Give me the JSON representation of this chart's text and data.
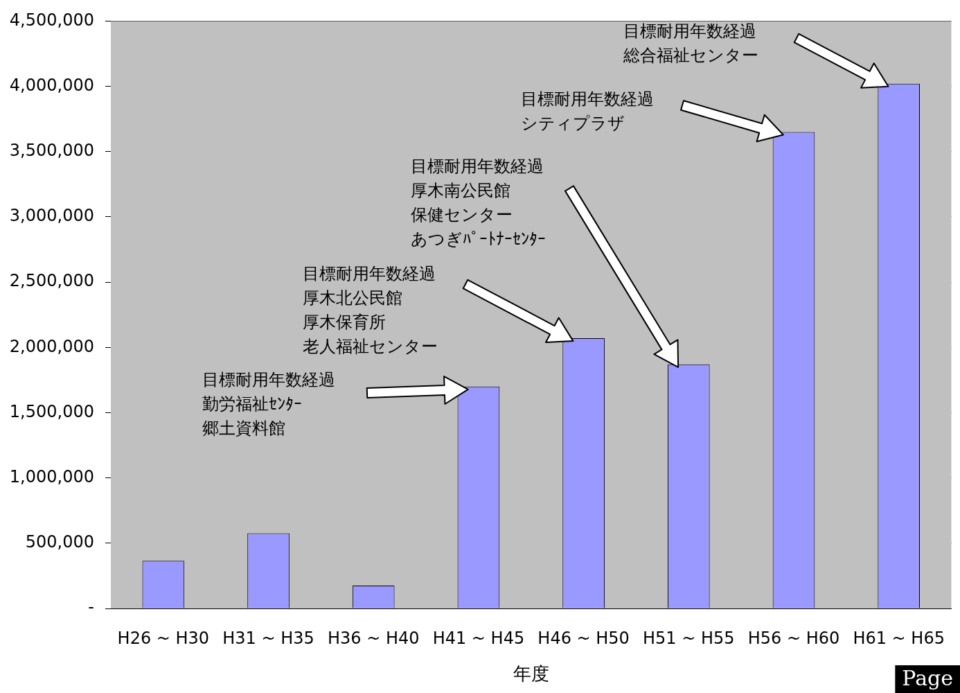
{
  "chart_data": {
    "type": "bar",
    "xlabel": "年度",
    "categories": [
      "H26 ~ H30",
      "H31 ~ H35",
      "H36 ~ H40",
      "H41 ~ H45",
      "H46 ~ H50",
      "H51 ~ H55",
      "H56 ~ H60",
      "H61 ~ H65"
    ],
    "values": [
      365000,
      576000,
      175000,
      1700000,
      2070000,
      1870000,
      3650000,
      4020000
    ],
    "color": "#9999ff",
    "ylim": [
      0,
      4500000
    ],
    "yticks": [
      {
        "value": 0,
        "label": "-"
      },
      {
        "value": 500000,
        "label": "500,000"
      },
      {
        "value": 1000000,
        "label": "1,000,000"
      },
      {
        "value": 1500000,
        "label": "1,500,000"
      },
      {
        "value": 2000000,
        "label": "2,000,000"
      },
      {
        "value": 2500000,
        "label": "2,500,000"
      },
      {
        "value": 3000000,
        "label": "3,000,000"
      },
      {
        "value": 3500000,
        "label": "3,500,000"
      },
      {
        "value": 4000000,
        "label": "4,000,000"
      },
      {
        "value": 4500000,
        "label": "4,500,000"
      }
    ],
    "grid": "y",
    "annotations": [
      "目標耐用年数経過",
      "勤労福祉ｾﾝﾀｰ",
      "郷土資料館",
      "目標耐用年数経過",
      "厚木北公民館",
      "厚木保育所",
      "老人福祉センター",
      "目標耐用年数経過",
      "厚木南公民館",
      "保健センター",
      "あつぎﾊﾟｰﾄﾅｰｾﾝﾀｰ",
      "目標耐用年数経過",
      "シティプラザ",
      "目標耐用年数経過",
      "総合福祉センター",
      "Page"
    ]
  }
}
